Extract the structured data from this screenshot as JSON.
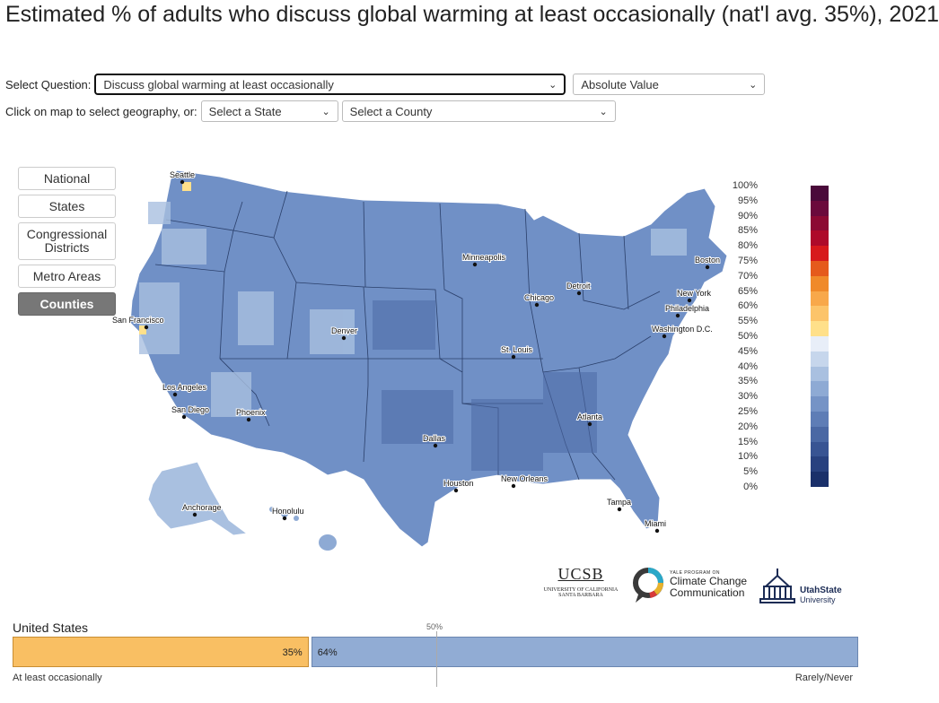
{
  "title": "Estimated % of adults who discuss global warming at least occasionally (nat'l avg. 35%), 2021",
  "controls": {
    "question_label": "Select Question:",
    "question_value": "Discuss global warming at least occasionally",
    "mode_value": "Absolute Value",
    "geo_label": "Click on map to select geography, or:",
    "state_value": "Select a State",
    "county_value": "Select a County"
  },
  "nav": {
    "national": "National",
    "states": "States",
    "congressional": "Congressional Districts",
    "metro": "Metro Areas",
    "counties": "Counties",
    "active": "Counties"
  },
  "map": {
    "cities": [
      "Seattle",
      "San Francisco",
      "Los Angeles",
      "San Diego",
      "Phoenix",
      "Denver",
      "Minneapolis",
      "Chicago",
      "Detroit",
      "St. Louis",
      "Dallas",
      "Houston",
      "New Orleans",
      "Atlanta",
      "Tampa",
      "Miami",
      "Washington D.C.",
      "Philadelphia",
      "New York",
      "Boston",
      "Anchorage",
      "Honolulu"
    ],
    "land_color": "#6f8fc4"
  },
  "legend": {
    "labels": [
      "100%",
      "95%",
      "90%",
      "85%",
      "80%",
      "75%",
      "70%",
      "65%",
      "60%",
      "55%",
      "50%",
      "45%",
      "40%",
      "35%",
      "30%",
      "25%",
      "20%",
      "15%",
      "10%",
      "5%",
      "0%"
    ],
    "colors": [
      "#4a0a3a",
      "#6b0a3c",
      "#8c0a33",
      "#ae0a2a",
      "#d7191c",
      "#e55a1c",
      "#f08a2a",
      "#f8a84a",
      "#fcc46a",
      "#ffe08a",
      "#e8eef8",
      "#c6d6ec",
      "#a9c0e0",
      "#8eaad4",
      "#7593c6",
      "#5e7db6",
      "#4a68a4",
      "#385493",
      "#28417f",
      "#1a306a",
      "#0e1f55"
    ]
  },
  "logos": {
    "ucsb_name": "UCSB",
    "ucsb_sub1": "UNIVERSITY OF CALIFORNIA",
    "ucsb_sub2": "SANTA BARBARA",
    "yale_small": "YALE PROGRAM ON",
    "yale_line1": "Climate Change",
    "yale_line2": "Communication",
    "usu_line1": "UtahState",
    "usu_line2": "University"
  },
  "bar": {
    "country": "United States",
    "fifty_label": "50%",
    "left_pct": 35,
    "left_label": "35%",
    "right_pct": 64,
    "right_label": "64%",
    "left_caption": "At least occasionally",
    "right_caption": "Rarely/Never"
  }
}
